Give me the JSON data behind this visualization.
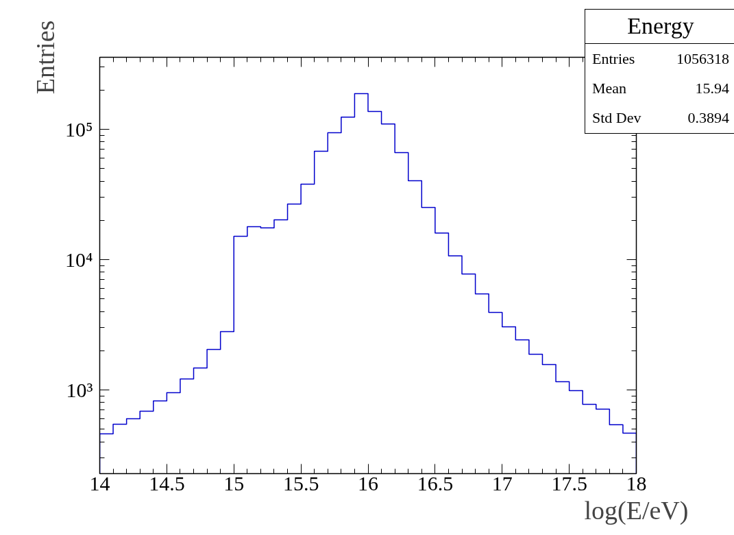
{
  "chart_data": {
    "type": "histogram",
    "xlabel": "log(E/eV)",
    "ylabel": "Entries",
    "log": "y",
    "color": "#0000cc",
    "bins": [
      14.0,
      14.1,
      14.2,
      14.3,
      14.4,
      14.5,
      14.6,
      14.7,
      14.8,
      14.9,
      15.0,
      15.1,
      15.2,
      15.3,
      15.4,
      15.5,
      15.6,
      15.7,
      15.8,
      15.9,
      16.0,
      16.1,
      16.2,
      16.3,
      16.4,
      16.5,
      16.6,
      16.7,
      16.8,
      16.9,
      17.0,
      17.1,
      17.2,
      17.3,
      17.4,
      17.5,
      17.6,
      17.7,
      17.8,
      17.9,
      18.0
    ],
    "values": [
      460,
      546,
      601,
      687,
      824,
      953,
      1214,
      1473,
      2046,
      2800,
      15100,
      17900,
      17500,
      20200,
      26700,
      37900,
      67900,
      94100,
      124000,
      188000,
      137000,
      110000,
      66200,
      40300,
      25100,
      16000,
      10700,
      7750,
      5450,
      3930,
      3050,
      2420,
      1876,
      1566,
      1156,
      988,
      775,
      712,
      540,
      466
    ],
    "xlim": [
      14,
      18
    ],
    "xticks": [
      14,
      14.5,
      15,
      15.5,
      16,
      16.5,
      17,
      17.5,
      18
    ],
    "ylim": [
      228,
      357000
    ],
    "yticks": [
      {
        "value": 1000,
        "label": "10³"
      },
      {
        "value": 10000,
        "label": "10⁴"
      },
      {
        "value": 100000,
        "label": "10⁵"
      }
    ],
    "grid": false,
    "annotations": [
      "Energy",
      "Entries",
      "1056318",
      "Mean",
      "15.94",
      "Std Dev",
      "0.3894"
    ]
  }
}
